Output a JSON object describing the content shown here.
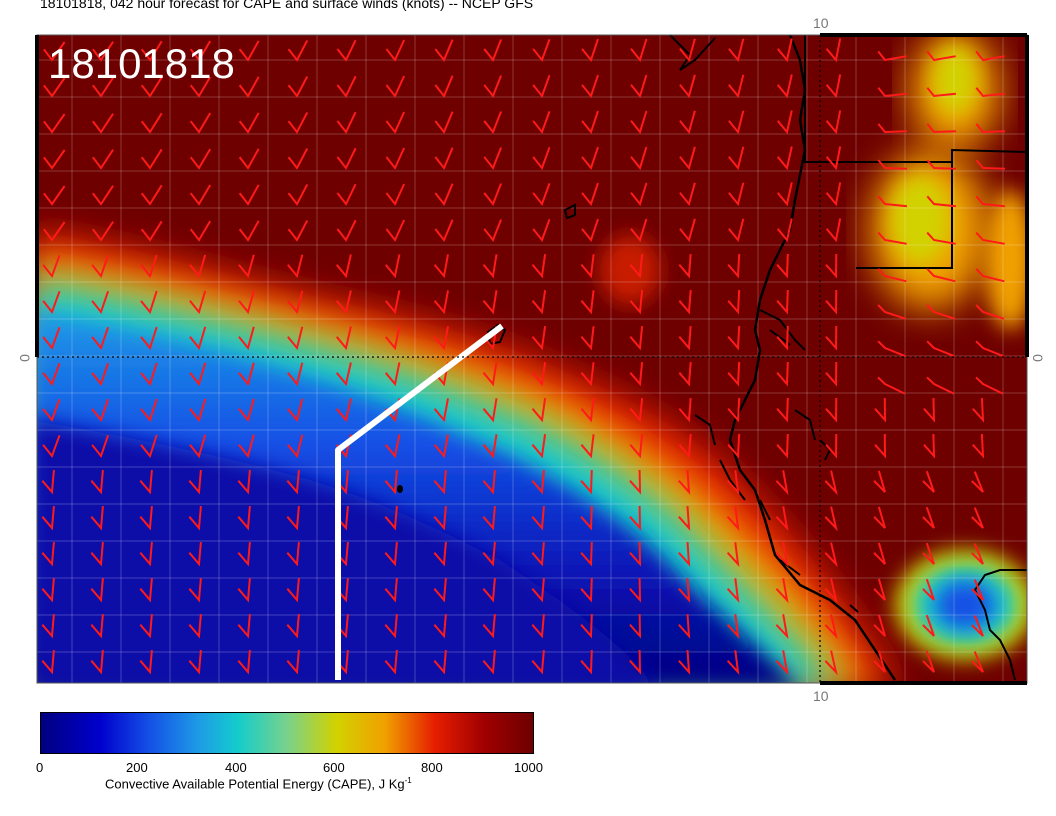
{
  "title": "18101818, 042 hour forecast for CAPE and surface winds (knots) -- NCEP GFS",
  "date_stamp": "18101818",
  "axes": {
    "lon_tick_top": "10",
    "lon_tick_bottom": "10",
    "lat_tick_left": "0",
    "lat_tick_right": "0"
  },
  "colorbar": {
    "ticks": [
      "0",
      "200",
      "400",
      "600",
      "800",
      "1000"
    ],
    "label": "Convective Available Potential Energy (CAPE), J Kg",
    "label_sup": "-1",
    "range": [
      0,
      1000
    ],
    "colors": [
      "#00007f",
      "#0000cd",
      "#1450e6",
      "#1e9be6",
      "#14cccc",
      "#78d28c",
      "#d2d200",
      "#f0a000",
      "#e61e00",
      "#a00000",
      "#6e0000"
    ]
  },
  "colors": {
    "wind_barb": "#ff1a1a",
    "coastline": "#000000",
    "forecast_track": "#ffffff"
  }
}
